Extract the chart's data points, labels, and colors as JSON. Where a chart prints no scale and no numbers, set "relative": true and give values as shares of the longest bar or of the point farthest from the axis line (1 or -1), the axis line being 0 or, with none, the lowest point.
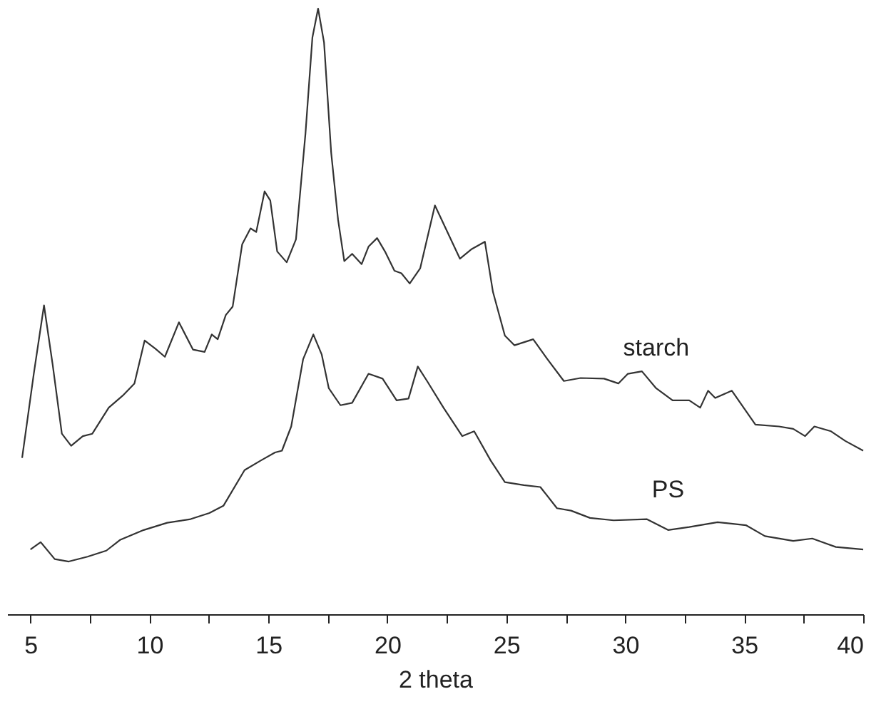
{
  "chart_data": {
    "type": "line",
    "xlabel": "2 theta",
    "relative": true,
    "xlim": [
      4.02,
      40
    ],
    "xticks": [
      5,
      {
        "value": 7.5,
        "label": null
      },
      10,
      {
        "value": 12.5,
        "label": null
      },
      15,
      {
        "value": 17.5,
        "label": null
      },
      20,
      {
        "value": 22.5,
        "label": null
      },
      25,
      {
        "value": 27.5,
        "label": null
      },
      30,
      {
        "value": 32.5,
        "label": null
      },
      35,
      {
        "value": 37.5,
        "label": null
      },
      40
    ],
    "series": [
      {
        "name": "starch",
        "color": "#333333",
        "x": [
          4.65,
          5.14,
          5.57,
          5.93,
          6.32,
          6.71,
          7.2,
          7.6,
          8.29,
          8.88,
          9.37,
          9.8,
          10.26,
          10.65,
          11.24,
          11.83,
          12.32,
          12.62,
          12.87,
          13.21,
          13.5,
          13.9,
          14.25,
          14.49,
          14.84,
          15.08,
          15.37,
          15.77,
          16.16,
          16.56,
          16.85,
          17.09,
          17.34,
          17.64,
          17.93,
          18.19,
          18.52,
          18.92,
          19.21,
          19.57,
          19.9,
          20.3,
          20.59,
          20.94,
          21.38,
          22.0,
          23.05,
          23.55,
          24.1,
          24.44,
          24.94,
          25.34,
          26.13,
          26.73,
          27.42,
          28.12,
          29.11,
          29.71,
          30.11,
          30.7,
          31.3,
          31.99,
          32.69,
          33.15,
          33.48,
          33.78,
          34.48,
          35.47,
          36.46,
          37.06,
          37.56,
          37.95,
          38.65,
          39.25,
          40.0
        ],
        "values": [
          0.258,
          0.397,
          0.51,
          0.413,
          0.298,
          0.278,
          0.294,
          0.298,
          0.341,
          0.361,
          0.381,
          0.452,
          0.438,
          0.425,
          0.482,
          0.437,
          0.433,
          0.462,
          0.454,
          0.494,
          0.508,
          0.611,
          0.637,
          0.631,
          0.698,
          0.683,
          0.599,
          0.581,
          0.619,
          0.794,
          0.952,
          1.0,
          0.944,
          0.762,
          0.651,
          0.583,
          0.595,
          0.578,
          0.607,
          0.621,
          0.599,
          0.567,
          0.563,
          0.546,
          0.571,
          0.675,
          0.587,
          0.603,
          0.615,
          0.532,
          0.46,
          0.444,
          0.454,
          0.421,
          0.385,
          0.39,
          0.389,
          0.381,
          0.397,
          0.401,
          0.373,
          0.353,
          0.353,
          0.341,
          0.369,
          0.357,
          0.369,
          0.313,
          0.31,
          0.306,
          0.294,
          0.31,
          0.302,
          0.286,
          0.27
        ]
      },
      {
        "name": "PS",
        "color": "#333333",
        "x": [
          5.0,
          5.43,
          6.02,
          6.61,
          7.4,
          8.19,
          8.78,
          9.76,
          10.75,
          11.73,
          12.52,
          13.11,
          14.0,
          14.69,
          15.28,
          15.57,
          15.96,
          16.46,
          16.89,
          17.24,
          17.54,
          18.03,
          18.52,
          19.21,
          19.8,
          20.39,
          20.89,
          21.28,
          21.67,
          22.36,
          23.15,
          23.65,
          24.34,
          24.94,
          25.74,
          26.43,
          27.13,
          27.72,
          28.52,
          29.51,
          30.9,
          31.8,
          32.69,
          33.88,
          35.07,
          35.87,
          37.06,
          37.86,
          38.85,
          40.0
        ],
        "values": [
          0.107,
          0.119,
          0.091,
          0.087,
          0.095,
          0.105,
          0.123,
          0.139,
          0.151,
          0.157,
          0.167,
          0.179,
          0.238,
          0.254,
          0.267,
          0.27,
          0.31,
          0.421,
          0.462,
          0.429,
          0.373,
          0.345,
          0.349,
          0.397,
          0.389,
          0.353,
          0.356,
          0.409,
          0.385,
          0.341,
          0.294,
          0.302,
          0.254,
          0.218,
          0.213,
          0.21,
          0.175,
          0.171,
          0.159,
          0.155,
          0.157,
          0.139,
          0.144,
          0.152,
          0.147,
          0.129,
          0.121,
          0.125,
          0.111,
          0.107
        ]
      }
    ]
  }
}
